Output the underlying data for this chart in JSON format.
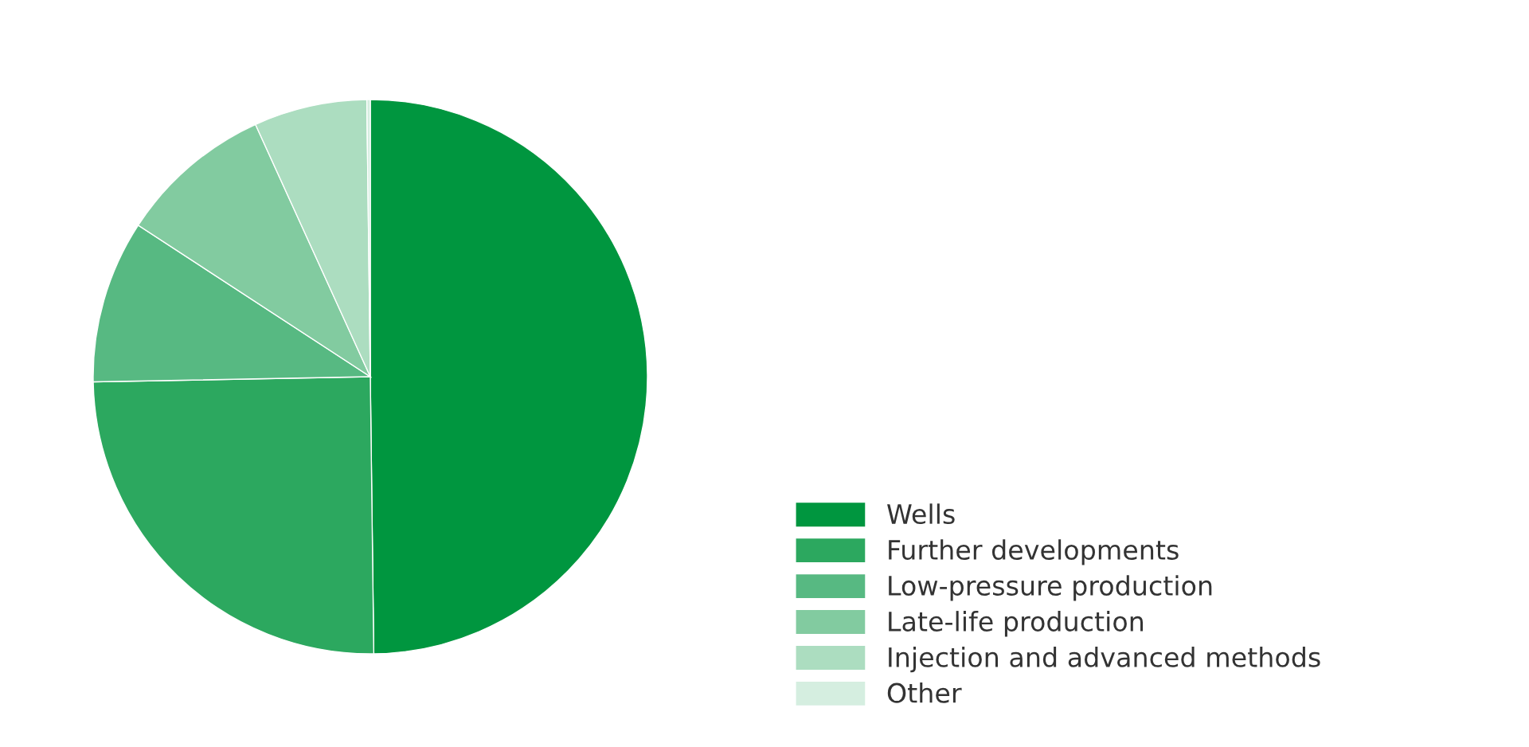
{
  "chart_data": {
    "type": "pie",
    "categories": [
      "Wells",
      "Further developments",
      "Low-pressure production",
      "Late-life production",
      "Injection and advanced methods",
      "Other"
    ],
    "values": [
      49.8,
      24.9,
      9.5,
      9.0,
      6.6,
      0.2
    ],
    "colors": [
      "#00963f",
      "#2ca85f",
      "#57b982",
      "#82cba0",
      "#acddc0",
      "#d5eee0"
    ],
    "legend": "bottom right"
  }
}
